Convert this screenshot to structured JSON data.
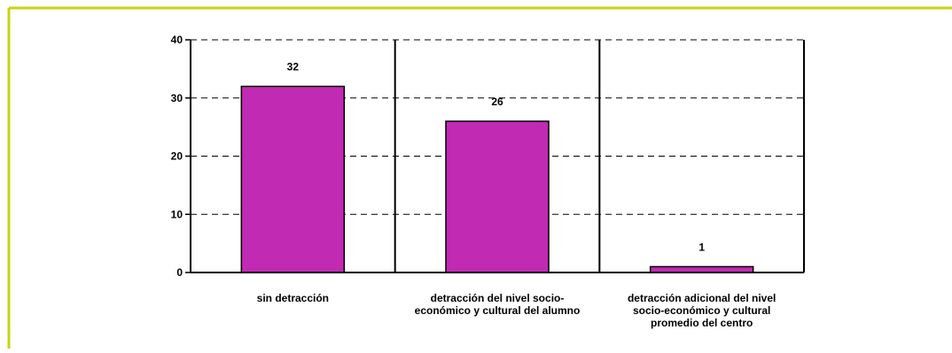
{
  "chart_data": {
    "type": "bar",
    "title": "",
    "xlabel": "",
    "ylabel": "",
    "categories": [
      [
        "sin detracción"
      ],
      [
        "detracción del nivel socio-",
        "económico y cultural del alumno"
      ],
      [
        "detracción adicional del nivel",
        "socio-económico y cultural",
        "promedio del centro"
      ]
    ],
    "values": [
      32,
      26,
      1
    ],
    "data_labels": [
      "32",
      "26",
      "1"
    ],
    "yticks": [
      "0",
      "10",
      "20",
      "30",
      "40"
    ],
    "ylim": [
      0,
      40
    ],
    "grid": true,
    "colors": {
      "bar": "#c12ab2",
      "frame_border": "#c6d412",
      "axis": "#000000",
      "grid": "#000000"
    }
  }
}
